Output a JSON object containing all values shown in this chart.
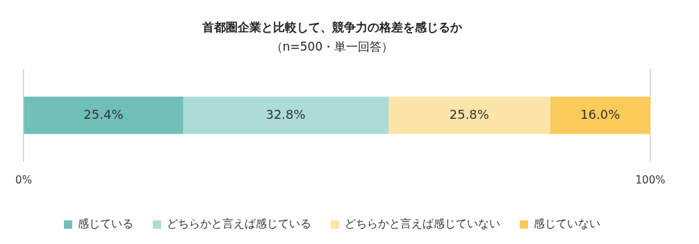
{
  "chart_data": {
    "type": "bar",
    "orientation": "horizontal",
    "stacked": true,
    "title": "首都圏企業と比較して、競争力の格差を感じるか",
    "subtitle": "（n=500・単一回答）",
    "categories": [
      null
    ],
    "series": [
      {
        "name": "感じている",
        "color": "#70bfb9",
        "values": [
          25.4
        ],
        "value_labels": [
          "25.4%"
        ]
      },
      {
        "name": "どちらかと言えば感じている",
        "color": "#acdcd8",
        "values": [
          32.8
        ],
        "value_labels": [
          "32.8%"
        ]
      },
      {
        "name": "どちらかと言えば感じていない",
        "color": "#fde4a9",
        "values": [
          25.8
        ],
        "value_labels": [
          "25.8%"
        ]
      },
      {
        "name": "感じていない",
        "color": "#fdcb5b",
        "values": [
          16.0
        ],
        "value_labels": [
          "16.0%"
        ]
      }
    ],
    "xlim": [
      0,
      100
    ],
    "xticks": [
      {
        "value": 0,
        "label": "0%"
      },
      {
        "value": 100,
        "label": "100%"
      }
    ],
    "grid": "x",
    "legend": "bottom"
  }
}
